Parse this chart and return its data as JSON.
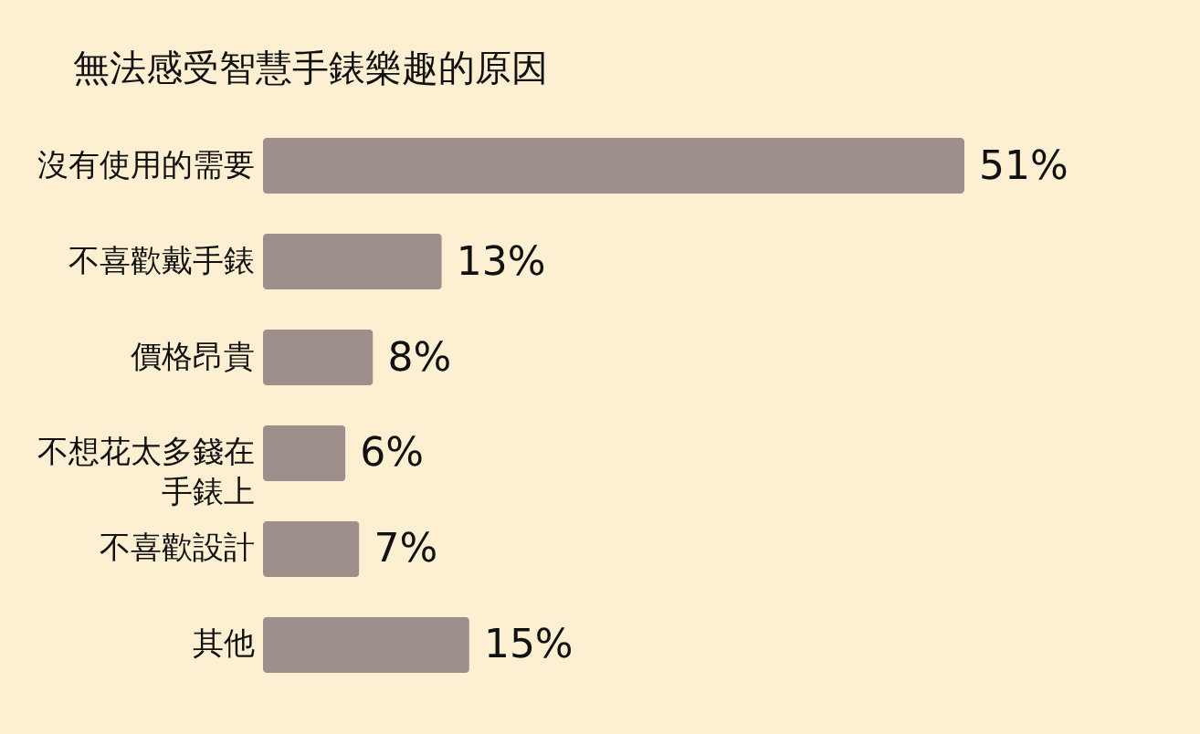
{
  "chart_data": {
    "type": "bar",
    "orientation": "horizontal",
    "title": "無法感受智慧手錶樂趣的原因",
    "categories": [
      "沒有使用的需要",
      "不喜歡戴手錶",
      "價格昂貴",
      "不想花太多錢在手錶上",
      "不喜歡設計",
      "其他"
    ],
    "values": [
      51,
      13,
      8,
      6,
      7,
      15
    ],
    "value_labels": [
      "51%",
      "13%",
      "8%",
      "6%",
      "7%",
      "15%"
    ],
    "color": "#9d8f8c"
  }
}
